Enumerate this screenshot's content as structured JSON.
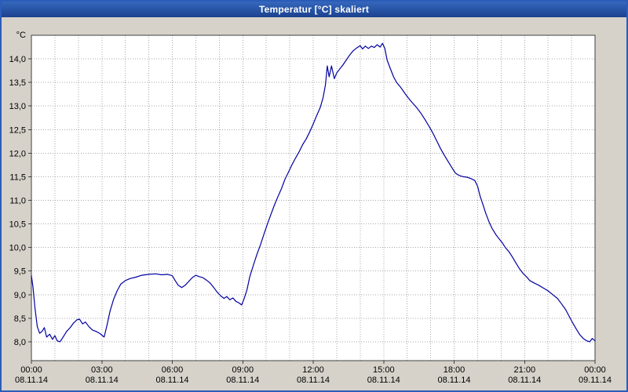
{
  "title": "Temperatur [°C] skaliert",
  "colors": {
    "titlebar_top": "#3568bd",
    "titlebar_bottom": "#1c418f",
    "window_border": "#2b5cb8",
    "background": "#d6d2ca",
    "plot_background": "#ffffff",
    "grid": "#a8a8a8",
    "axis": "#404040",
    "text": "#000000"
  },
  "chart_data": {
    "type": "line",
    "title": "Temperatur [°C] skaliert",
    "xlabel": "",
    "ylabel": "°C",
    "xlim": [
      0,
      24
    ],
    "ylim": [
      7.6,
      14.5
    ],
    "grid": true,
    "legend_position": "none",
    "line_color": "#0000A0",
    "y_ticks": [
      {
        "v": 8.0,
        "label": "8,0"
      },
      {
        "v": 8.5,
        "label": "8,5"
      },
      {
        "v": 9.0,
        "label": "9,0"
      },
      {
        "v": 9.5,
        "label": "9,5"
      },
      {
        "v": 10.0,
        "label": "10,0"
      },
      {
        "v": 10.5,
        "label": "10,5"
      },
      {
        "v": 11.0,
        "label": "11,0"
      },
      {
        "v": 11.5,
        "label": "11,5"
      },
      {
        "v": 12.0,
        "label": "12,0"
      },
      {
        "v": 12.5,
        "label": "12,5"
      },
      {
        "v": 13.0,
        "label": "13,0"
      },
      {
        "v": 13.5,
        "label": "13,5"
      },
      {
        "v": 14.0,
        "label": "14,0"
      }
    ],
    "x_ticks": [
      {
        "h": 0,
        "time": "00:00",
        "date": "08.11.14"
      },
      {
        "h": 3,
        "time": "03:00",
        "date": "08.11.14"
      },
      {
        "h": 6,
        "time": "06:00",
        "date": "08.11.14"
      },
      {
        "h": 9,
        "time": "09:00",
        "date": "08.11.14"
      },
      {
        "h": 12,
        "time": "12:00",
        "date": "08.11.14"
      },
      {
        "h": 15,
        "time": "15:00",
        "date": "08.11.14"
      },
      {
        "h": 18,
        "time": "18:00",
        "date": "08.11.14"
      },
      {
        "h": 21,
        "time": "21:00",
        "date": "08.11.14"
      },
      {
        "h": 24,
        "time": "00:00",
        "date": "09.11.14"
      }
    ],
    "series": [
      {
        "name": "Temperatur",
        "points": [
          [
            0.0,
            9.4
          ],
          [
            0.07,
            9.15
          ],
          [
            0.15,
            8.72
          ],
          [
            0.25,
            8.32
          ],
          [
            0.35,
            8.18
          ],
          [
            0.45,
            8.22
          ],
          [
            0.55,
            8.3
          ],
          [
            0.65,
            8.1
          ],
          [
            0.78,
            8.16
          ],
          [
            0.9,
            8.05
          ],
          [
            1.0,
            8.13
          ],
          [
            1.1,
            8.02
          ],
          [
            1.22,
            8.0
          ],
          [
            1.35,
            8.1
          ],
          [
            1.5,
            8.22
          ],
          [
            1.65,
            8.3
          ],
          [
            1.8,
            8.4
          ],
          [
            1.95,
            8.47
          ],
          [
            2.05,
            8.48
          ],
          [
            2.18,
            8.38
          ],
          [
            2.3,
            8.42
          ],
          [
            2.45,
            8.32
          ],
          [
            2.6,
            8.25
          ],
          [
            2.75,
            8.22
          ],
          [
            2.9,
            8.18
          ],
          [
            3.0,
            8.14
          ],
          [
            3.1,
            8.1
          ],
          [
            3.22,
            8.35
          ],
          [
            3.35,
            8.65
          ],
          [
            3.5,
            8.9
          ],
          [
            3.65,
            9.08
          ],
          [
            3.8,
            9.22
          ],
          [
            4.0,
            9.3
          ],
          [
            4.2,
            9.34
          ],
          [
            4.45,
            9.37
          ],
          [
            4.7,
            9.41
          ],
          [
            5.0,
            9.43
          ],
          [
            5.3,
            9.44
          ],
          [
            5.55,
            9.42
          ],
          [
            5.8,
            9.43
          ],
          [
            6.0,
            9.4
          ],
          [
            6.12,
            9.3
          ],
          [
            6.25,
            9.2
          ],
          [
            6.4,
            9.15
          ],
          [
            6.55,
            9.2
          ],
          [
            6.7,
            9.28
          ],
          [
            6.85,
            9.36
          ],
          [
            7.0,
            9.41
          ],
          [
            7.15,
            9.38
          ],
          [
            7.3,
            9.36
          ],
          [
            7.45,
            9.31
          ],
          [
            7.6,
            9.25
          ],
          [
            7.75,
            9.16
          ],
          [
            7.9,
            9.06
          ],
          [
            8.05,
            8.98
          ],
          [
            8.2,
            8.92
          ],
          [
            8.32,
            8.96
          ],
          [
            8.45,
            8.89
          ],
          [
            8.58,
            8.93
          ],
          [
            8.7,
            8.86
          ],
          [
            8.85,
            8.82
          ],
          [
            8.95,
            8.78
          ],
          [
            9.05,
            8.9
          ],
          [
            9.18,
            9.1
          ],
          [
            9.3,
            9.38
          ],
          [
            9.45,
            9.62
          ],
          [
            9.6,
            9.85
          ],
          [
            9.75,
            10.05
          ],
          [
            9.9,
            10.28
          ],
          [
            10.05,
            10.5
          ],
          [
            10.2,
            10.7
          ],
          [
            10.35,
            10.9
          ],
          [
            10.5,
            11.08
          ],
          [
            10.65,
            11.25
          ],
          [
            10.8,
            11.45
          ],
          [
            10.95,
            11.6
          ],
          [
            11.1,
            11.76
          ],
          [
            11.25,
            11.9
          ],
          [
            11.4,
            12.03
          ],
          [
            11.55,
            12.18
          ],
          [
            11.7,
            12.3
          ],
          [
            11.85,
            12.45
          ],
          [
            12.0,
            12.62
          ],
          [
            12.15,
            12.8
          ],
          [
            12.3,
            12.97
          ],
          [
            12.42,
            13.18
          ],
          [
            12.52,
            13.45
          ],
          [
            12.6,
            13.85
          ],
          [
            12.68,
            13.62
          ],
          [
            12.78,
            13.85
          ],
          [
            12.9,
            13.58
          ],
          [
            13.0,
            13.7
          ],
          [
            13.12,
            13.78
          ],
          [
            13.25,
            13.86
          ],
          [
            13.4,
            13.97
          ],
          [
            13.55,
            14.08
          ],
          [
            13.7,
            14.17
          ],
          [
            13.85,
            14.23
          ],
          [
            14.0,
            14.28
          ],
          [
            14.1,
            14.21
          ],
          [
            14.22,
            14.27
          ],
          [
            14.35,
            14.22
          ],
          [
            14.48,
            14.27
          ],
          [
            14.6,
            14.24
          ],
          [
            14.72,
            14.3
          ],
          [
            14.85,
            14.25
          ],
          [
            14.95,
            14.33
          ],
          [
            15.05,
            14.22
          ],
          [
            15.15,
            13.97
          ],
          [
            15.28,
            13.8
          ],
          [
            15.42,
            13.62
          ],
          [
            15.55,
            13.5
          ],
          [
            15.72,
            13.4
          ],
          [
            15.9,
            13.27
          ],
          [
            16.05,
            13.17
          ],
          [
            16.22,
            13.07
          ],
          [
            16.4,
            12.97
          ],
          [
            16.58,
            12.85
          ],
          [
            16.75,
            12.72
          ],
          [
            16.92,
            12.58
          ],
          [
            17.08,
            12.44
          ],
          [
            17.25,
            12.27
          ],
          [
            17.42,
            12.1
          ],
          [
            17.58,
            11.96
          ],
          [
            17.75,
            11.82
          ],
          [
            17.92,
            11.68
          ],
          [
            18.05,
            11.58
          ],
          [
            18.2,
            11.53
          ],
          [
            18.38,
            11.5
          ],
          [
            18.55,
            11.49
          ],
          [
            18.72,
            11.46
          ],
          [
            18.88,
            11.42
          ],
          [
            19.0,
            11.3
          ],
          [
            19.1,
            11.1
          ],
          [
            19.22,
            10.92
          ],
          [
            19.35,
            10.72
          ],
          [
            19.48,
            10.55
          ],
          [
            19.62,
            10.4
          ],
          [
            19.78,
            10.27
          ],
          [
            19.92,
            10.18
          ],
          [
            20.05,
            10.1
          ],
          [
            20.18,
            10.0
          ],
          [
            20.32,
            9.92
          ],
          [
            20.48,
            9.8
          ],
          [
            20.62,
            9.68
          ],
          [
            20.78,
            9.55
          ],
          [
            20.95,
            9.44
          ],
          [
            21.08,
            9.38
          ],
          [
            21.22,
            9.3
          ],
          [
            21.4,
            9.25
          ],
          [
            21.6,
            9.2
          ],
          [
            21.8,
            9.14
          ],
          [
            22.0,
            9.08
          ],
          [
            22.2,
            9.0
          ],
          [
            22.4,
            8.92
          ],
          [
            22.58,
            8.8
          ],
          [
            22.75,
            8.68
          ],
          [
            22.9,
            8.54
          ],
          [
            23.05,
            8.4
          ],
          [
            23.2,
            8.27
          ],
          [
            23.35,
            8.15
          ],
          [
            23.5,
            8.07
          ],
          [
            23.65,
            8.02
          ],
          [
            23.78,
            8.0
          ],
          [
            23.88,
            8.07
          ],
          [
            24.0,
            8.02
          ]
        ]
      }
    ]
  }
}
